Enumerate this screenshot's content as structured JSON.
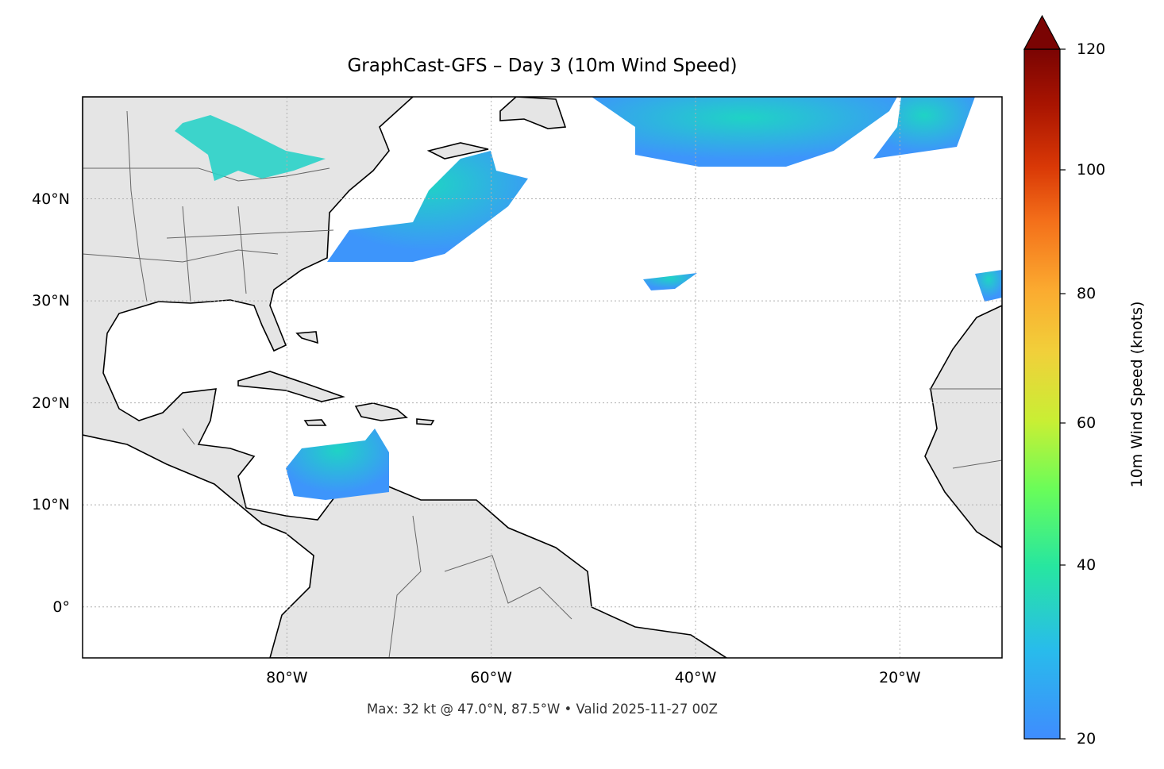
{
  "title": "GraphCast-GFS – Day 3 (10m Wind Speed)",
  "footer": "Max: 32 kt @ 47.0°N, 87.5°W • Valid 2025-11-27 00Z",
  "map": {
    "projection": "PlateCarree",
    "extent_lon": [
      -100,
      -10
    ],
    "extent_lat": [
      -5,
      50
    ],
    "gridlines": "dotted",
    "land_color": "#e5e5e5",
    "ocean_color": "#ffffff",
    "coastline_color": "#000000",
    "border_color": "#666666",
    "lon_ticks": [
      {
        "value": -80,
        "label": "80°W"
      },
      {
        "value": -60,
        "label": "60°W"
      },
      {
        "value": -40,
        "label": "40°W"
      },
      {
        "value": -20,
        "label": "20°W"
      }
    ],
    "lat_ticks": [
      {
        "value": 40,
        "label": "40°N"
      },
      {
        "value": 30,
        "label": "30°N"
      },
      {
        "value": 20,
        "label": "20°N"
      },
      {
        "value": 10,
        "label": "10°N"
      },
      {
        "value": 0,
        "label": "0°"
      }
    ],
    "max_wind": {
      "value_kt": 32,
      "lat": 47.0,
      "lon": -87.5
    }
  },
  "colorbar": {
    "label": "10m Wind Speed (knots)",
    "colormap": "turbo",
    "range": [
      20,
      120
    ],
    "extend": "max",
    "ticks": [
      "20",
      "40",
      "60",
      "80",
      "100",
      "120"
    ],
    "colors": [
      "#3f8cfe",
      "#1fd3c5",
      "#a4fc3c",
      "#fbb938",
      "#e2420a",
      "#7a0403"
    ]
  }
}
